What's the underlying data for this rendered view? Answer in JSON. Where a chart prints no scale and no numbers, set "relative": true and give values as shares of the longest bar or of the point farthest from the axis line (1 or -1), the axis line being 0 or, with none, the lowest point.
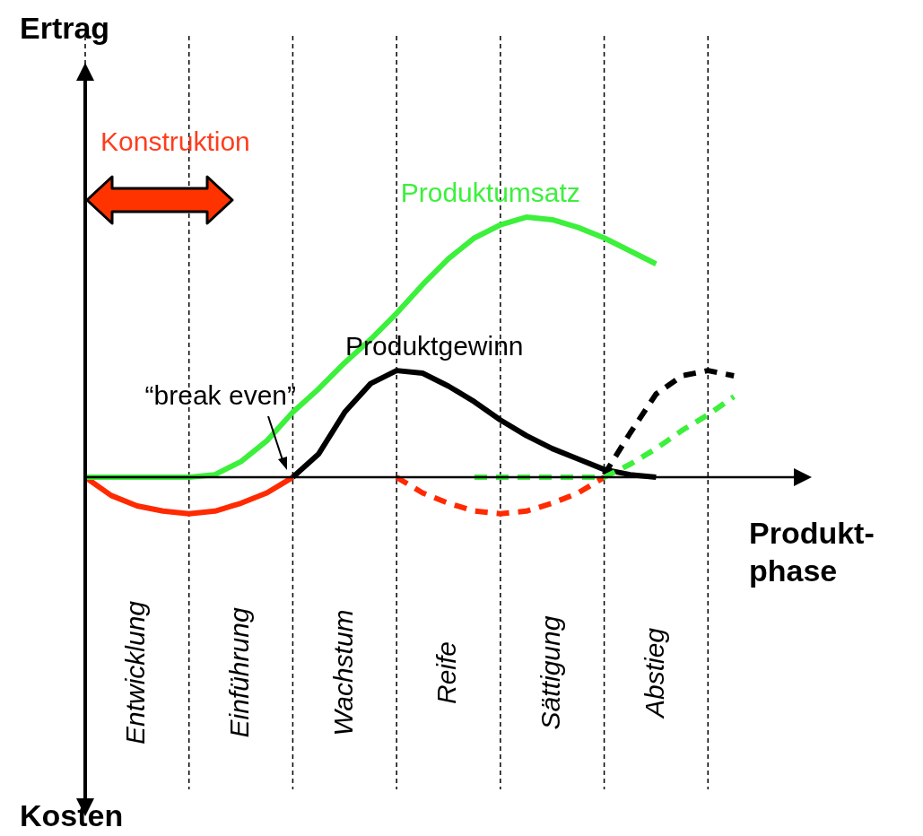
{
  "chart_data": {
    "type": "line",
    "relative": true,
    "legend": false,
    "marker": "none",
    "grid": "x",
    "xlabel": "Produkt-\nphase",
    "categories": [
      null,
      null,
      "Entwicklung",
      null,
      null,
      null,
      "Einführung",
      null,
      null,
      null,
      "Wachstum",
      null,
      null,
      null,
      "Reife",
      null,
      null,
      null,
      "Sättigung",
      null,
      null,
      null,
      "Abstieg",
      null,
      null,
      null,
      null,
      null,
      null
    ],
    "series": [
      {
        "name": "Produktumsatz",
        "color": "#3cf03c",
        "line_style": "solid",
        "values": [
          0,
          0,
          0,
          0,
          0,
          0.01,
          0.06,
          0.14,
          0.25,
          0.34,
          0.44,
          0.53,
          0.63,
          0.74,
          0.84,
          0.92,
          0.97,
          1,
          0.99,
          0.96,
          0.92,
          0.87,
          0.82,
          null,
          null,
          null,
          null,
          null,
          null
        ]
      },
      {
        "color": "#3cf03c",
        "line_style": "dashed",
        "values": [
          null,
          null,
          null,
          null,
          null,
          null,
          null,
          null,
          null,
          null,
          null,
          null,
          null,
          null,
          null,
          0,
          0,
          0,
          0,
          0,
          0,
          0.05,
          0.11,
          0.18,
          0.24,
          0.31,
          null,
          null,
          null
        ]
      },
      {
        "name": "Produktgewinn",
        "color": "#000000",
        "line_style": "solid",
        "values": [
          null,
          null,
          null,
          null,
          null,
          null,
          null,
          null,
          0,
          0.09,
          0.25,
          0.36,
          0.41,
          0.4,
          0.35,
          0.29,
          0.22,
          0.16,
          0.11,
          0.07,
          0.03,
          0.01,
          0,
          null,
          null,
          null,
          null,
          null,
          null
        ]
      },
      {
        "color": "#000000",
        "line_style": "dashed",
        "values": [
          null,
          null,
          null,
          null,
          null,
          null,
          null,
          null,
          null,
          null,
          null,
          null,
          null,
          null,
          null,
          null,
          null,
          null,
          null,
          null,
          0.01,
          0.17,
          0.32,
          0.39,
          0.41,
          0.39,
          null,
          null,
          null
        ]
      },
      {
        "color": "#ff2a00",
        "line_style": "solid",
        "values": [
          0,
          -0.07,
          -0.11,
          -0.13,
          -0.14,
          -0.13,
          -0.1,
          -0.06,
          0,
          null,
          null,
          null,
          null,
          null,
          null,
          null,
          null,
          null,
          null,
          null,
          null,
          null,
          null,
          null,
          null,
          null,
          null,
          null,
          null
        ]
      },
      {
        "color": "#ff2a00",
        "line_style": "dashed",
        "values": [
          null,
          null,
          null,
          null,
          null,
          null,
          null,
          null,
          null,
          null,
          null,
          null,
          0,
          -0.06,
          -0.1,
          -0.13,
          -0.14,
          -0.13,
          -0.1,
          -0.06,
          0,
          null,
          null,
          null,
          null,
          null,
          null,
          null,
          null
        ]
      }
    ],
    "annotations": [
      "Ertrag",
      "Konstruktion",
      "“break even”",
      "Kosten"
    ]
  }
}
